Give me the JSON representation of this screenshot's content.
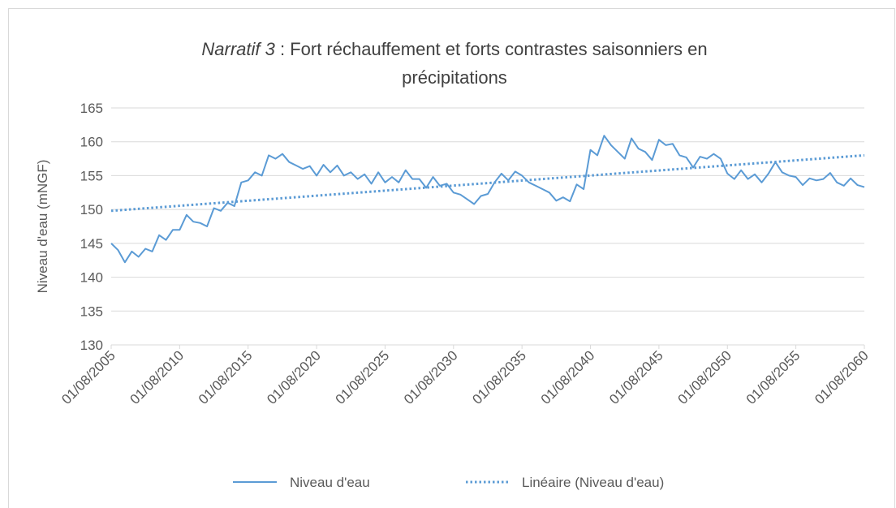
{
  "chart_data": {
    "type": "line",
    "title_lines": [
      "Narratif 3",
      " : Fort réchauffement et forts contrastes saisonniers en",
      "précipitations"
    ],
    "y_label": "Niveau d'eau (mNGF)",
    "x": [
      "01/08/2005",
      "01/02/2006",
      "01/08/2006",
      "01/02/2007",
      "01/08/2007",
      "01/02/2008",
      "01/08/2008",
      "01/02/2009",
      "01/08/2009",
      "01/02/2010",
      "01/08/2010",
      "01/02/2011",
      "01/08/2011",
      "01/02/2012",
      "01/08/2012",
      "01/02/2013",
      "01/08/2013",
      "01/02/2014",
      "01/08/2014",
      "01/02/2015",
      "01/08/2015",
      "01/02/2016",
      "01/08/2016",
      "01/02/2017",
      "01/08/2017",
      "01/02/2018",
      "01/08/2018",
      "01/02/2019",
      "01/08/2019",
      "01/02/2020",
      "01/08/2020",
      "01/02/2021",
      "01/08/2021",
      "01/02/2022",
      "01/08/2022",
      "01/02/2023",
      "01/08/2023",
      "01/02/2024",
      "01/08/2024",
      "01/02/2025",
      "01/08/2025",
      "01/02/2026",
      "01/08/2026",
      "01/02/2027",
      "01/08/2027",
      "01/02/2028",
      "01/08/2028",
      "01/02/2029",
      "01/08/2029",
      "01/02/2030",
      "01/08/2030",
      "01/02/2031",
      "01/08/2031",
      "01/02/2032",
      "01/08/2032",
      "01/02/2033",
      "01/08/2033",
      "01/02/2034",
      "01/08/2034",
      "01/02/2035",
      "01/08/2035",
      "01/02/2036",
      "01/08/2036",
      "01/02/2037",
      "01/08/2037",
      "01/02/2038",
      "01/08/2038",
      "01/02/2039",
      "01/08/2039",
      "01/02/2040",
      "01/08/2040",
      "01/02/2041",
      "01/08/2041",
      "01/02/2042",
      "01/08/2042",
      "01/02/2043",
      "01/08/2043",
      "01/02/2044",
      "01/08/2044",
      "01/02/2045",
      "01/08/2045",
      "01/02/2046",
      "01/08/2046",
      "01/02/2047",
      "01/08/2047",
      "01/02/2048",
      "01/08/2048",
      "01/02/2049",
      "01/08/2049",
      "01/02/2050",
      "01/08/2050",
      "01/02/2051",
      "01/08/2051",
      "01/02/2052",
      "01/08/2052",
      "01/02/2053",
      "01/08/2053",
      "01/02/2054",
      "01/08/2054",
      "01/02/2055",
      "01/08/2055",
      "01/02/2056",
      "01/08/2056",
      "01/02/2057",
      "01/08/2057",
      "01/02/2058",
      "01/08/2058",
      "01/02/2059",
      "01/08/2059",
      "01/02/2060",
      "01/08/2060"
    ],
    "series": [
      {
        "name": "Niveau d'eau",
        "color": "#5b9bd5",
        "style": "solid",
        "values": [
          145,
          144,
          142.2,
          143.8,
          143,
          144.2,
          143.8,
          146.2,
          145.5,
          147,
          147,
          149.2,
          148.2,
          148,
          147.5,
          150.2,
          149.8,
          151,
          150.5,
          154,
          154.3,
          155.5,
          155,
          158,
          157.5,
          158.2,
          157,
          156.5,
          156,
          156.4,
          155,
          156.6,
          155.5,
          156.5,
          155,
          155.5,
          154.5,
          155.2,
          153.8,
          155.5,
          154,
          154.8,
          154,
          155.8,
          154.5,
          154.5,
          153.2,
          154.8,
          153.5,
          153.8,
          152.5,
          152.2,
          151.5,
          150.8,
          152,
          152.3,
          154,
          155.3,
          154.3,
          155.6,
          155,
          154,
          153.5,
          153,
          152.5,
          151.3,
          151.8,
          151.2,
          153.7,
          153,
          158.8,
          158,
          160.9,
          159.5,
          158.5,
          157.5,
          160.5,
          159,
          158.5,
          157.3,
          160.3,
          159.5,
          159.7,
          158,
          157.7,
          156.2,
          157.8,
          157.5,
          158.2,
          157.5,
          155.3,
          154.5,
          155.8,
          154.5,
          155.2,
          154,
          155.3,
          157,
          155.5,
          155,
          154.8,
          153.6,
          154.6,
          154.3,
          154.5,
          155.4,
          154,
          153.5,
          154.6,
          153.6,
          153.3
        ]
      },
      {
        "name": "Linéaire (Niveau d'eau)",
        "color": "#5b9bd5",
        "style": "dotted",
        "x": [
          "01/08/2005",
          "01/08/2060"
        ],
        "values": [
          149.8,
          158
        ]
      }
    ],
    "xlim": [
      "01/08/2005",
      "01/08/2060"
    ],
    "xticks": [
      "01/08/2005",
      "01/08/2010",
      "01/08/2015",
      "01/08/2020",
      "01/08/2025",
      "01/08/2030",
      "01/08/2035",
      "01/08/2040",
      "01/08/2045",
      "01/08/2050",
      "01/08/2055",
      "01/08/2060"
    ],
    "ylim": [
      130,
      165
    ],
    "yticks": [
      130,
      135,
      140,
      145,
      150,
      155,
      160,
      165
    ],
    "grid": true,
    "legend": "bottom"
  }
}
